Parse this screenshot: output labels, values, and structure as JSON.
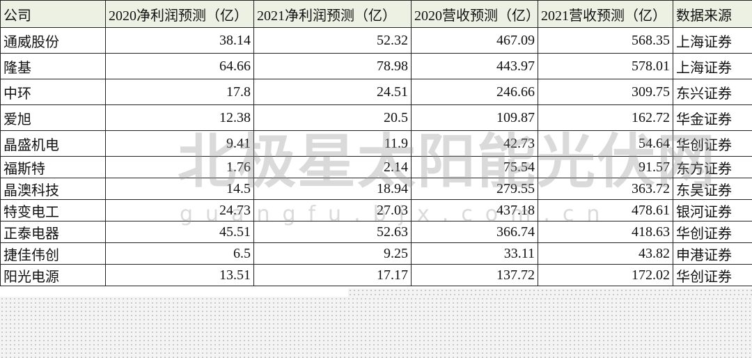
{
  "table": {
    "header": [
      "公司",
      "2020净利润预测（亿）",
      "2021净利润预测（亿）",
      "2020营收预测（亿）",
      "2021营收预测（亿）",
      "数据来源"
    ],
    "rows": [
      [
        "通威股份",
        "38.14",
        "52.32",
        "467.09",
        "568.35",
        "上海证券"
      ],
      [
        "隆基",
        "64.66",
        "78.98",
        "443.97",
        "578.01",
        "上海证券"
      ],
      [
        "中环",
        "17.8",
        "24.51",
        "246.66",
        "309.75",
        "东兴证券"
      ],
      [
        "爱旭",
        "12.38",
        "20.5",
        "109.87",
        "162.72",
        "华金证券"
      ],
      [
        "晶盛机电",
        "9.41",
        "11.9",
        "42.73",
        "54.64",
        "华创证券"
      ],
      [
        "福斯特",
        "1.76",
        "2.14",
        "75.54",
        "91.57",
        "东方证券"
      ],
      [
        "晶澳科技",
        "14.5",
        "18.94",
        "279.55",
        "363.72",
        "东吴证券"
      ],
      [
        "特变电工",
        "24.73",
        "27.03",
        "437.18",
        "478.61",
        "银河证券"
      ],
      [
        "正泰电器",
        "45.51",
        "52.63",
        "366.74",
        "418.63",
        "华创证券"
      ],
      [
        "捷佳伟创",
        "6.5",
        "9.25",
        "33.11",
        "43.82",
        "申港证券"
      ],
      [
        "阳光电源",
        "13.51",
        "17.17",
        "137.72",
        "172.02",
        "华创证券"
      ]
    ]
  },
  "watermark": {
    "title": "北极星太阳能光伏网",
    "url": "guangfu.bjx.com.cn"
  }
}
